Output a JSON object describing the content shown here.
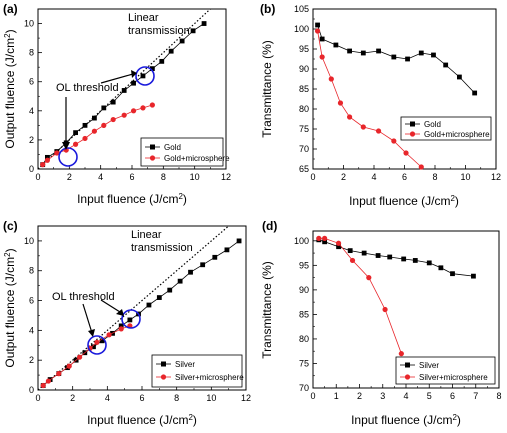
{
  "chart_data": [
    {
      "panel": "(a)",
      "type": "line",
      "xlabel": "Input fluence (J/cm2)",
      "ylabel": "Output fluence (J/cm2)",
      "xlim": [
        0,
        12
      ],
      "ylim": [
        0,
        11
      ],
      "xticks": [
        0,
        2,
        4,
        6,
        8,
        10,
        12
      ],
      "yticks": [
        0,
        2,
        4,
        6,
        8,
        10
      ],
      "legend_position": "bottom-right",
      "series": [
        {
          "name": "Gold",
          "color": "#000000",
          "marker": "square",
          "x": [
            0.3,
            0.6,
            1.2,
            1.8,
            2.4,
            3.0,
            3.6,
            4.2,
            4.8,
            5.5,
            6.1,
            6.7,
            7.3,
            7.9,
            8.5,
            9.2,
            9.9,
            10.6
          ],
          "y": [
            0.3,
            0.8,
            1.2,
            1.8,
            2.5,
            3.0,
            3.5,
            4.2,
            4.6,
            5.4,
            5.9,
            6.4,
            6.9,
            7.4,
            8.1,
            8.8,
            9.5,
            10.0
          ]
        },
        {
          "name": "Gold+microsphere",
          "color": "#e8262b",
          "marker": "circle",
          "x": [
            0.3,
            0.6,
            1.2,
            1.8,
            2.4,
            3.0,
            3.6,
            4.2,
            4.8,
            5.5,
            6.1,
            6.7,
            7.3
          ],
          "y": [
            0.3,
            0.6,
            1.1,
            1.3,
            1.7,
            2.1,
            2.6,
            3.0,
            3.4,
            3.7,
            4.0,
            4.2,
            4.4
          ]
        }
      ],
      "annotations": [
        "Linear transmission",
        "OL threshold"
      ]
    },
    {
      "panel": "(b)",
      "type": "line",
      "xlabel": "Input fluence (J/cm2)",
      "ylabel": "Transmittance (%)",
      "xlim": [
        0,
        12
      ],
      "ylim": [
        65,
        105
      ],
      "xticks": [
        0,
        2,
        4,
        6,
        8,
        10,
        12
      ],
      "yticks": [
        65,
        70,
        75,
        80,
        85,
        90,
        95,
        100,
        105
      ],
      "legend_position": "bottom-right",
      "series": [
        {
          "name": "Gold",
          "color": "#000000",
          "marker": "square",
          "x": [
            0.3,
            0.6,
            1.5,
            2.4,
            3.3,
            4.3,
            5.3,
            6.2,
            7.1,
            7.9,
            8.7,
            9.6,
            10.6
          ],
          "y": [
            101.0,
            97.5,
            96.0,
            94.5,
            94.0,
            94.5,
            93.0,
            92.5,
            94.0,
            93.5,
            91.0,
            88.0,
            84.0
          ]
        },
        {
          "name": "Gold+microsphere",
          "color": "#e8262b",
          "marker": "circle",
          "x": [
            0.3,
            0.6,
            1.2,
            1.8,
            2.4,
            3.3,
            4.3,
            5.3,
            6.1,
            7.1
          ],
          "y": [
            99.5,
            93.0,
            87.5,
            81.5,
            78.0,
            75.5,
            74.5,
            72.0,
            69.0,
            65.5
          ]
        }
      ]
    },
    {
      "panel": "(c)",
      "type": "line",
      "xlabel": "Input fluence (J/cm2)",
      "ylabel": "Output fluence (J/cm2)",
      "xlim": [
        0,
        12
      ],
      "ylim": [
        0,
        11
      ],
      "xticks": [
        0,
        2,
        4,
        6,
        8,
        10,
        12
      ],
      "yticks": [
        0,
        2,
        4,
        6,
        8,
        10
      ],
      "legend_position": "bottom-right",
      "series": [
        {
          "name": "Silver",
          "color": "#000000",
          "marker": "square",
          "x": [
            0.3,
            0.7,
            1.2,
            1.7,
            2.2,
            2.7,
            3.2,
            3.7,
            4.3,
            4.8,
            5.3,
            5.8,
            6.4,
            7.0,
            7.6,
            8.2,
            8.8,
            9.5,
            10.2,
            10.9,
            11.6
          ],
          "y": [
            0.3,
            0.7,
            1.1,
            1.5,
            2.0,
            2.5,
            2.9,
            3.3,
            3.8,
            4.3,
            4.7,
            5.1,
            5.7,
            6.2,
            6.7,
            7.3,
            7.9,
            8.4,
            8.9,
            9.4,
            10.0
          ]
        },
        {
          "name": "Silver+microsphere",
          "color": "#e8262b",
          "marker": "circle",
          "x": [
            0.3,
            0.6,
            1.2,
            1.8,
            2.4,
            3.0,
            3.4,
            4.1,
            4.8,
            5.3
          ],
          "y": [
            0.3,
            0.6,
            1.1,
            1.6,
            2.2,
            2.8,
            3.2,
            3.7,
            4.1,
            4.3
          ]
        }
      ],
      "annotations": [
        "Linear transmission",
        "OL threshold"
      ]
    },
    {
      "panel": "(d)",
      "type": "line",
      "xlabel": "Input fluence (J/cm2)",
      "ylabel": "Transmittance (%)",
      "xlim": [
        0,
        8
      ],
      "ylim": [
        70,
        102
      ],
      "xticks": [
        0,
        1,
        2,
        3,
        4,
        5,
        6,
        7,
        8
      ],
      "yticks": [
        70,
        75,
        80,
        85,
        90,
        95,
        100
      ],
      "legend_position": "bottom-right",
      "series": [
        {
          "name": "Silver",
          "color": "#000000",
          "marker": "square",
          "x": [
            0.25,
            0.5,
            1.1,
            1.6,
            2.2,
            2.8,
            3.3,
            3.9,
            4.4,
            5.0,
            5.5,
            6.0,
            6.9
          ],
          "y": [
            100.2,
            99.8,
            98.8,
            98.0,
            97.5,
            97.0,
            96.7,
            96.3,
            96.0,
            95.5,
            94.5,
            93.3,
            92.8
          ]
        },
        {
          "name": "Silver+microsphere",
          "color": "#e8262b",
          "marker": "circle",
          "x": [
            0.25,
            0.5,
            1.1,
            1.7,
            2.4,
            3.1,
            3.8
          ],
          "y": [
            100.5,
            100.5,
            99.5,
            96.0,
            92.5,
            86.0,
            77.0
          ]
        }
      ]
    }
  ],
  "text": {
    "panel_a": "(a)",
    "panel_b": "(b)",
    "panel_c": "(c)",
    "panel_d": "(d)",
    "xlabel_main": "Input fluence (J/cm",
    "xlabel_sup": "2",
    "xlabel_close": ")",
    "ylabel_output_main": "Output fluence (J/cm",
    "ylabel_output_sup": "2",
    "ylabel_output_close": ")",
    "ylabel_trans": "Transmittance (%)",
    "linear_line1": "Linear",
    "linear_line2": "transmission",
    "ol_threshold": "OL threshold"
  }
}
